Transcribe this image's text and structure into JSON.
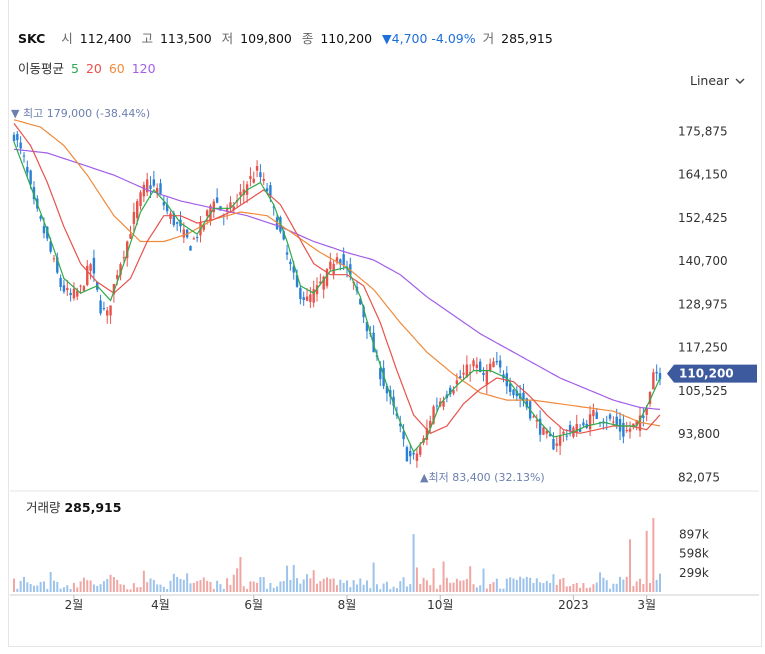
{
  "header": {
    "name": "SKC",
    "open_label": "시",
    "open": "112,400",
    "high_label": "고",
    "high": "113,500",
    "low_label": "저",
    "low": "109,800",
    "close_label": "종",
    "close": "110,200",
    "change": "▼4,700 -4.09%",
    "volume_label": "거",
    "volume": "285,915"
  },
  "ma": {
    "label": "이동평균",
    "items": [
      {
        "label": "5",
        "color": "#2eaa4a"
      },
      {
        "label": "20",
        "color": "#e8524b"
      },
      {
        "label": "60",
        "color": "#f08a3c"
      },
      {
        "label": "120",
        "color": "#a25ee8"
      }
    ]
  },
  "scale": {
    "label": "Linear"
  },
  "colors": {
    "up": "#e8524b",
    "down": "#2a7fd6",
    "grid": "#f0f0f0",
    "axis": "#333333",
    "marker": "#6b7fb0",
    "price_tag": "#3d5a9e"
  },
  "chart_data": {
    "type": "candlestick",
    "x_ticks": [
      "2월",
      "4월",
      "6월",
      "8월",
      "10월",
      "2023",
      "3월"
    ],
    "y_ticks": [
      "175,875",
      "164,150",
      "152,425",
      "140,700",
      "128,975",
      "117,250",
      "105,525",
      "93,800",
      "82,075"
    ],
    "ylim": [
      80000,
      183000
    ],
    "current_price": "110,200",
    "high_marker": "최고 179,000 (-38.44%)",
    "low_marker": "최저 83,400 (32.13%)",
    "close_path": [
      [
        0,
        175000
      ],
      [
        3,
        168000
      ],
      [
        6,
        156000
      ],
      [
        10,
        146000
      ],
      [
        14,
        134000
      ],
      [
        17,
        131000
      ],
      [
        20,
        133000
      ],
      [
        23,
        140000
      ],
      [
        26,
        128000
      ],
      [
        28,
        126000
      ],
      [
        31,
        138000
      ],
      [
        34,
        146000
      ],
      [
        37,
        156000
      ],
      [
        40,
        162000
      ],
      [
        43,
        160000
      ],
      [
        46,
        154000
      ],
      [
        50,
        149000
      ],
      [
        53,
        145000
      ],
      [
        57,
        151000
      ],
      [
        60,
        158000
      ],
      [
        63,
        153000
      ],
      [
        67,
        157000
      ],
      [
        70,
        162000
      ],
      [
        73,
        165000
      ],
      [
        76,
        160000
      ],
      [
        79,
        151000
      ],
      [
        82,
        142000
      ],
      [
        85,
        133000
      ],
      [
        88,
        130000
      ],
      [
        91,
        133000
      ],
      [
        94,
        137000
      ],
      [
        97,
        143000
      ],
      [
        100,
        138000
      ],
      [
        103,
        132000
      ],
      [
        106,
        123000
      ],
      [
        109,
        113000
      ],
      [
        112,
        105000
      ],
      [
        115,
        98000
      ],
      [
        118,
        88000
      ],
      [
        120,
        87000
      ],
      [
        123,
        92000
      ],
      [
        126,
        101000
      ],
      [
        129,
        104000
      ],
      [
        132,
        107000
      ],
      [
        135,
        110000
      ],
      [
        138,
        113000
      ],
      [
        141,
        109000
      ],
      [
        144,
        113000
      ],
      [
        147,
        110000
      ],
      [
        150,
        105000
      ],
      [
        153,
        103000
      ],
      [
        156,
        98000
      ],
      [
        159,
        94000
      ],
      [
        162,
        91000
      ],
      [
        165,
        94000
      ],
      [
        168,
        95000
      ],
      [
        171,
        96000
      ],
      [
        174,
        99000
      ],
      [
        177,
        98000
      ],
      [
        180,
        97000
      ],
      [
        183,
        94000
      ],
      [
        186,
        96000
      ],
      [
        189,
        98000
      ],
      [
        192,
        111000
      ],
      [
        194,
        110200
      ]
    ],
    "ma5_path": [
      [
        0,
        173000
      ],
      [
        5,
        161000
      ],
      [
        10,
        149000
      ],
      [
        15,
        136000
      ],
      [
        20,
        132000
      ],
      [
        25,
        134000
      ],
      [
        29,
        130000
      ],
      [
        33,
        140000
      ],
      [
        38,
        154000
      ],
      [
        42,
        160000
      ],
      [
        46,
        156000
      ],
      [
        50,
        151000
      ],
      [
        55,
        148000
      ],
      [
        60,
        155000
      ],
      [
        65,
        155000
      ],
      [
        70,
        160000
      ],
      [
        74,
        162000
      ],
      [
        78,
        156000
      ],
      [
        82,
        146000
      ],
      [
        86,
        134000
      ],
      [
        90,
        132000
      ],
      [
        95,
        138000
      ],
      [
        100,
        139000
      ],
      [
        104,
        131000
      ],
      [
        108,
        118000
      ],
      [
        112,
        107000
      ],
      [
        116,
        97000
      ],
      [
        120,
        89000
      ],
      [
        124,
        93000
      ],
      [
        128,
        102000
      ],
      [
        133,
        107000
      ],
      [
        138,
        111000
      ],
      [
        143,
        111000
      ],
      [
        148,
        109000
      ],
      [
        152,
        104000
      ],
      [
        157,
        98000
      ],
      [
        162,
        93000
      ],
      [
        167,
        94000
      ],
      [
        172,
        96000
      ],
      [
        177,
        97000
      ],
      [
        182,
        96000
      ],
      [
        187,
        96000
      ],
      [
        191,
        103000
      ],
      [
        194,
        109000
      ]
    ],
    "ma20_path": [
      [
        0,
        178000
      ],
      [
        5,
        172000
      ],
      [
        10,
        162000
      ],
      [
        15,
        150000
      ],
      [
        20,
        140000
      ],
      [
        25,
        135000
      ],
      [
        30,
        132000
      ],
      [
        35,
        136000
      ],
      [
        40,
        146000
      ],
      [
        45,
        153000
      ],
      [
        50,
        153000
      ],
      [
        55,
        151000
      ],
      [
        60,
        152000
      ],
      [
        65,
        154000
      ],
      [
        70,
        157000
      ],
      [
        75,
        160000
      ],
      [
        80,
        156000
      ],
      [
        85,
        148000
      ],
      [
        90,
        140000
      ],
      [
        95,
        137000
      ],
      [
        100,
        137000
      ],
      [
        105,
        134000
      ],
      [
        110,
        124000
      ],
      [
        115,
        111000
      ],
      [
        120,
        99000
      ],
      [
        125,
        94000
      ],
      [
        130,
        96000
      ],
      [
        135,
        102000
      ],
      [
        140,
        106000
      ],
      [
        145,
        109000
      ],
      [
        150,
        108000
      ],
      [
        155,
        104000
      ],
      [
        160,
        99000
      ],
      [
        165,
        95000
      ],
      [
        170,
        94000
      ],
      [
        175,
        95000
      ],
      [
        180,
        96000
      ],
      [
        185,
        96000
      ],
      [
        190,
        95000
      ],
      [
        194,
        99000
      ]
    ],
    "ma60_path": [
      [
        0,
        179000
      ],
      [
        8,
        177000
      ],
      [
        15,
        172000
      ],
      [
        22,
        164000
      ],
      [
        30,
        153000
      ],
      [
        38,
        146000
      ],
      [
        45,
        146000
      ],
      [
        52,
        148000
      ],
      [
        60,
        152000
      ],
      [
        68,
        154000
      ],
      [
        76,
        153000
      ],
      [
        84,
        148000
      ],
      [
        92,
        143000
      ],
      [
        100,
        139000
      ],
      [
        108,
        133000
      ],
      [
        116,
        124000
      ],
      [
        124,
        116000
      ],
      [
        132,
        110000
      ],
      [
        140,
        105000
      ],
      [
        148,
        103000
      ],
      [
        156,
        103000
      ],
      [
        164,
        102000
      ],
      [
        172,
        101000
      ],
      [
        180,
        100000
      ],
      [
        188,
        97000
      ],
      [
        194,
        96000
      ]
    ],
    "ma120_path": [
      [
        0,
        171000
      ],
      [
        10,
        170000
      ],
      [
        20,
        167000
      ],
      [
        30,
        164000
      ],
      [
        40,
        160000
      ],
      [
        50,
        157000
      ],
      [
        60,
        155000
      ],
      [
        70,
        153000
      ],
      [
        80,
        150000
      ],
      [
        90,
        146000
      ],
      [
        100,
        143000
      ],
      [
        108,
        141000
      ],
      [
        116,
        137000
      ],
      [
        124,
        131000
      ],
      [
        132,
        126000
      ],
      [
        140,
        121000
      ],
      [
        148,
        117000
      ],
      [
        156,
        113000
      ],
      [
        164,
        109000
      ],
      [
        172,
        106000
      ],
      [
        180,
        103000
      ],
      [
        188,
        101000
      ],
      [
        194,
        100500
      ]
    ],
    "volume": {
      "label": "거래량",
      "value": "285,915",
      "y_ticks": [
        "897k",
        "598k",
        "299k"
      ],
      "ylim": [
        0,
        1150000
      ],
      "spikes": [
        [
          120,
          900000
        ],
        [
          185,
          820000
        ],
        [
          190,
          950000
        ],
        [
          192,
          1150000
        ],
        [
          194,
          285915
        ]
      ]
    }
  }
}
